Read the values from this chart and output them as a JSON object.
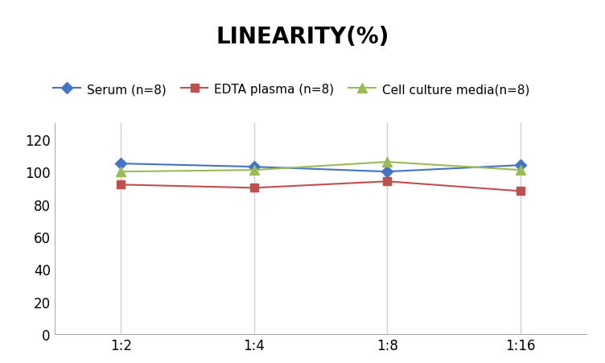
{
  "title": "LINEARITY(%)",
  "x_labels": [
    "1:2",
    "1:4",
    "1:8",
    "1:16"
  ],
  "x_positions": [
    0,
    1,
    2,
    3
  ],
  "series": [
    {
      "label": "Serum (n=8)",
      "values": [
        105,
        103,
        100,
        104
      ],
      "color": "#4472C4",
      "marker": "D",
      "markersize": 7
    },
    {
      "label": "EDTA plasma (n=8)",
      "values": [
        92,
        90,
        94,
        88
      ],
      "color": "#C0504D",
      "marker": "s",
      "markersize": 7
    },
    {
      "label": "Cell culture media(n=8)",
      "values": [
        100,
        101,
        106,
        101
      ],
      "color": "#9BBB59",
      "marker": "^",
      "markersize": 8
    }
  ],
  "ylim": [
    0,
    130
  ],
  "yticks": [
    0,
    20,
    40,
    60,
    80,
    100,
    120
  ],
  "grid_color": "#D0D0D0",
  "background_color": "#FFFFFF",
  "title_fontsize": 20,
  "legend_fontsize": 11,
  "tick_fontsize": 12
}
